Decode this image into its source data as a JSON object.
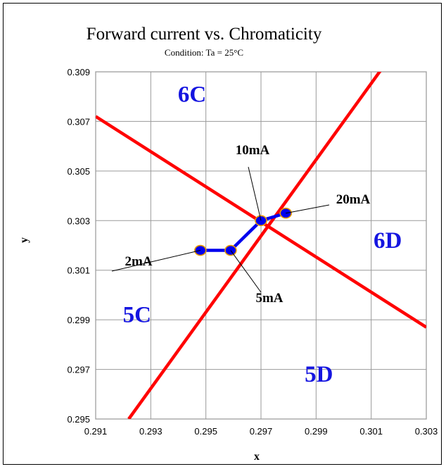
{
  "chart_data": {
    "type": "line",
    "title": "Forward current vs. Chromaticity",
    "subtitle": "Condition: Ta = 25°C",
    "xlabel": "x",
    "ylabel": "y",
    "xlim": [
      0.291,
      0.303
    ],
    "ylim": [
      0.295,
      0.309
    ],
    "x_ticks": [
      "0.291",
      "0.293",
      "0.295",
      "0.297",
      "0.299",
      "0.301",
      "0.303"
    ],
    "y_ticks": [
      "0.295",
      "0.297",
      "0.299",
      "0.301",
      "0.303",
      "0.305",
      "0.307",
      "0.309"
    ],
    "grid": true,
    "series": [
      {
        "color": "#0000ee",
        "points": [
          {
            "x": 0.2948,
            "y": 0.3018,
            "label": "2mA"
          },
          {
            "x": 0.2959,
            "y": 0.3018,
            "label": "5mA"
          },
          {
            "x": 0.297,
            "y": 0.303,
            "label": "10mA"
          },
          {
            "x": 0.2979,
            "y": 0.3033,
            "label": "20mA"
          }
        ]
      }
    ],
    "boundary_lines": [
      {
        "color": "#ff0000",
        "from": [
          0.2922,
          0.295
        ],
        "to": [
          0.3015,
          0.3093
        ]
      },
      {
        "color": "#ff0000",
        "from": [
          0.291,
          0.3072
        ],
        "to": [
          0.303,
          0.2987
        ]
      }
    ],
    "regions": [
      {
        "label": "6C",
        "x": 0.2945,
        "y": 0.3078
      },
      {
        "label": "6D",
        "x": 0.3016,
        "y": 0.3019
      },
      {
        "label": "5C",
        "x": 0.2925,
        "y": 0.2989
      },
      {
        "label": "5D",
        "x": 0.2991,
        "y": 0.2965
      }
    ],
    "region_color": "#1515e0"
  }
}
